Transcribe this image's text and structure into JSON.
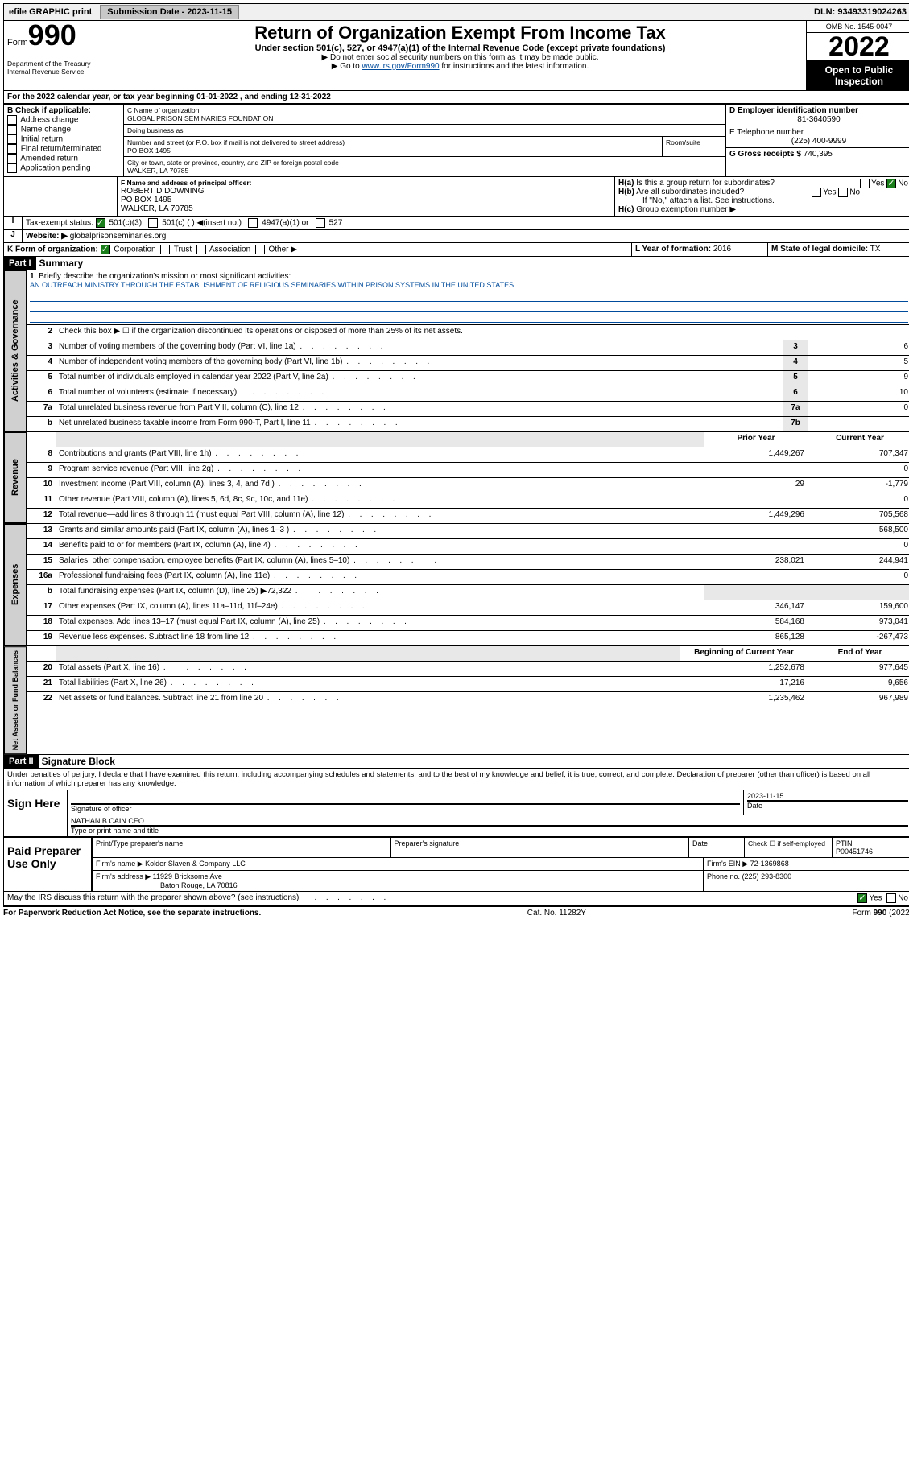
{
  "topbar": {
    "efile": "efile GRAPHIC print",
    "submission_label": "Submission Date - 2023-11-15",
    "dln": "DLN: 93493319024263"
  },
  "header": {
    "form_label": "Form",
    "form_number": "990",
    "dept": "Department of the Treasury\nInternal Revenue Service",
    "main_title": "Return of Organization Exempt From Income Tax",
    "sub_title": "Under section 501(c), 527, or 4947(a)(1) of the Internal Revenue Code (except private foundations)",
    "instr1": "Do not enter social security numbers on this form as it may be made public.",
    "instr2_pre": "Go to ",
    "instr2_link": "www.irs.gov/Form990",
    "instr2_post": " for instructions and the latest information.",
    "omb": "OMB No. 1545-0047",
    "year": "2022",
    "open_public": "Open to Public Inspection"
  },
  "line_a": "For the 2022 calendar year, or tax year beginning 01-01-2022   , and ending 12-31-2022",
  "box_b": {
    "title": "B Check if applicable:",
    "opts": [
      "Address change",
      "Name change",
      "Initial return",
      "Final return/terminated",
      "Amended return",
      "Application pending"
    ]
  },
  "box_c": {
    "label_name": "C Name of organization",
    "org_name": "GLOBAL PRISON SEMINARIES FOUNDATION",
    "dba_label": "Doing business as",
    "addr_label": "Number and street (or P.O. box if mail is not delivered to street address)",
    "room_label": "Room/suite",
    "addr": "PO BOX 1495",
    "city_label": "City or town, state or province, country, and ZIP or foreign postal code",
    "city": "WALKER, LA  70785"
  },
  "box_d": {
    "label": "D Employer identification number",
    "value": "81-3640590"
  },
  "box_e": {
    "label": "E Telephone number",
    "value": "(225) 400-9999"
  },
  "box_g": {
    "label": "G Gross receipts $",
    "value": "740,395"
  },
  "box_f": {
    "label": "F  Name and address of principal officer:",
    "name": "ROBERT D DOWNING",
    "addr1": "PO BOX 1495",
    "addr2": "WALKER, LA  70785"
  },
  "box_h": {
    "ha": "Is this a group return for subordinates?",
    "hb": "Are all subordinates included?",
    "hno": "If \"No,\" attach a list. See instructions.",
    "hc": "Group exemption number ▶"
  },
  "line_i": {
    "label": "Tax-exempt status:",
    "opts": [
      "501(c)(3)",
      "501(c) (  ) ◀(insert no.)",
      "4947(a)(1) or",
      "527"
    ]
  },
  "line_j": {
    "label": "Website: ▶",
    "value": "globalprisonseminaries.org"
  },
  "line_k": {
    "label": "K Form of organization:",
    "opts": [
      "Corporation",
      "Trust",
      "Association",
      "Other ▶"
    ]
  },
  "line_l": {
    "label": "L Year of formation:",
    "value": "2016"
  },
  "line_m": {
    "label": "M State of legal domicile:",
    "value": "TX"
  },
  "part1": {
    "header": "Part I",
    "title": "Summary",
    "l1": "Briefly describe the organization's mission or most significant activities:",
    "mission": "AN OUTREACH MINISTRY THROUGH THE ESTABLISHMENT OF RELIGIOUS SEMINARIES WITHIN PRISON SYSTEMS IN THE UNITED STATES.",
    "l2": "Check this box ▶ ☐  if the organization discontinued its operations or disposed of more than 25% of its net assets.",
    "rows_single": [
      {
        "n": "3",
        "t": "Number of voting members of the governing body (Part VI, line 1a)",
        "box": "3",
        "v": "6"
      },
      {
        "n": "4",
        "t": "Number of independent voting members of the governing body (Part VI, line 1b)",
        "box": "4",
        "v": "5"
      },
      {
        "n": "5",
        "t": "Total number of individuals employed in calendar year 2022 (Part V, line 2a)",
        "box": "5",
        "v": "9"
      },
      {
        "n": "6",
        "t": "Total number of volunteers (estimate if necessary)",
        "box": "6",
        "v": "10"
      },
      {
        "n": "7a",
        "t": "Total unrelated business revenue from Part VIII, column (C), line 12",
        "box": "7a",
        "v": "0"
      },
      {
        "n": "b",
        "t": "Net unrelated business taxable income from Form 990-T, Part I, line 11",
        "box": "7b",
        "v": ""
      }
    ],
    "col_prior": "Prior Year",
    "col_current": "Current Year",
    "rows_double": [
      {
        "n": "8",
        "t": "Contributions and grants (Part VIII, line 1h)",
        "p": "1,449,267",
        "c": "707,347"
      },
      {
        "n": "9",
        "t": "Program service revenue (Part VIII, line 2g)",
        "p": "",
        "c": "0"
      },
      {
        "n": "10",
        "t": "Investment income (Part VIII, column (A), lines 3, 4, and 7d )",
        "p": "29",
        "c": "-1,779"
      },
      {
        "n": "11",
        "t": "Other revenue (Part VIII, column (A), lines 5, 6d, 8c, 9c, 10c, and 11e)",
        "p": "",
        "c": "0"
      },
      {
        "n": "12",
        "t": "Total revenue—add lines 8 through 11 (must equal Part VIII, column (A), line 12)",
        "p": "1,449,296",
        "c": "705,568"
      },
      {
        "n": "13",
        "t": "Grants and similar amounts paid (Part IX, column (A), lines 1–3 )",
        "p": "",
        "c": "568,500"
      },
      {
        "n": "14",
        "t": "Benefits paid to or for members (Part IX, column (A), line 4)",
        "p": "",
        "c": "0"
      },
      {
        "n": "15",
        "t": "Salaries, other compensation, employee benefits (Part IX, column (A), lines 5–10)",
        "p": "238,021",
        "c": "244,941"
      },
      {
        "n": "16a",
        "t": "Professional fundraising fees (Part IX, column (A), line 11e)",
        "p": "",
        "c": "0"
      },
      {
        "n": "b",
        "t": "Total fundraising expenses (Part IX, column (D), line 25) ▶72,322",
        "p": "GRAY",
        "c": "GRAY"
      },
      {
        "n": "17",
        "t": "Other expenses (Part IX, column (A), lines 11a–11d, 11f–24e)",
        "p": "346,147",
        "c": "159,600"
      },
      {
        "n": "18",
        "t": "Total expenses. Add lines 13–17 (must equal Part IX, column (A), line 25)",
        "p": "584,168",
        "c": "973,041"
      },
      {
        "n": "19",
        "t": "Revenue less expenses. Subtract line 18 from line 12",
        "p": "865,128",
        "c": "-267,473"
      }
    ],
    "col_begin": "Beginning of Current Year",
    "col_end": "End of Year",
    "rows_net": [
      {
        "n": "20",
        "t": "Total assets (Part X, line 16)",
        "p": "1,252,678",
        "c": "977,645"
      },
      {
        "n": "21",
        "t": "Total liabilities (Part X, line 26)",
        "p": "17,216",
        "c": "9,656"
      },
      {
        "n": "22",
        "t": "Net assets or fund balances. Subtract line 21 from line 20",
        "p": "1,235,462",
        "c": "967,989"
      }
    ],
    "vtabs": [
      "Activities & Governance",
      "Revenue",
      "Expenses",
      "Net Assets or Fund Balances"
    ]
  },
  "part2": {
    "header": "Part II",
    "title": "Signature Block",
    "penalty": "Under penalties of perjury, I declare that I have examined this return, including accompanying schedules and statements, and to the best of my knowledge and belief, it is true, correct, and complete. Declaration of preparer (other than officer) is based on all information of which preparer has any knowledge."
  },
  "sign": {
    "label": "Sign Here",
    "sig_officer": "Signature of officer",
    "date": "Date",
    "date_val": "2023-11-15",
    "name": "NATHAN B CAIN CEO",
    "name_label": "Type or print name and title"
  },
  "paid": {
    "label": "Paid Preparer Use Only",
    "col1": "Print/Type preparer's name",
    "col2": "Preparer's signature",
    "col3": "Date",
    "col4_check": "Check ☐ if self-employed",
    "col5": "PTIN",
    "ptin": "P00451746",
    "firm_name_label": "Firm's name   ▶",
    "firm_name": "Kolder Slaven & Company LLC",
    "firm_ein_label": "Firm's EIN ▶",
    "firm_ein": "72-1369868",
    "firm_addr_label": "Firm's address ▶",
    "firm_addr": "11929 Bricksome Ave",
    "firm_addr2": "Baton Rouge, LA  70816",
    "phone_label": "Phone no.",
    "phone": "(225) 293-8300"
  },
  "footer": {
    "discuss": "May the IRS discuss this return with the preparer shown above? (see instructions)",
    "paperwork": "For Paperwork Reduction Act Notice, see the separate instructions.",
    "cat": "Cat. No. 11282Y",
    "form": "Form 990 (2022)"
  }
}
